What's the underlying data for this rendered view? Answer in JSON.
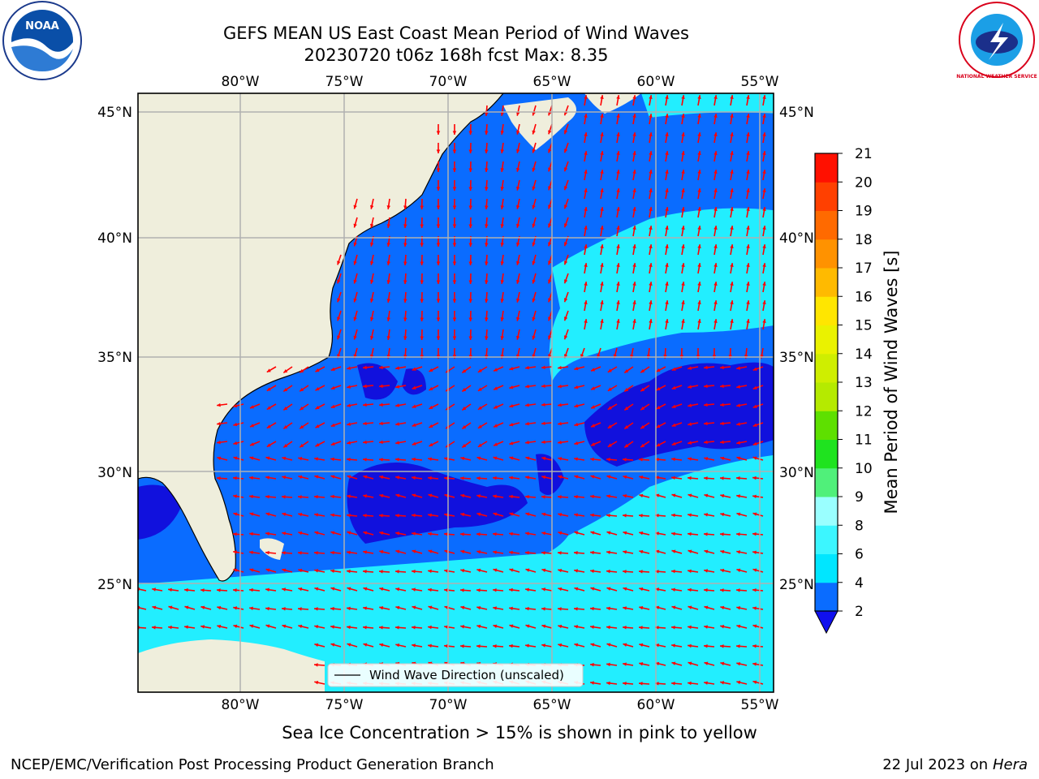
{
  "title_line1": "GEFS MEAN US East Coast Mean Period of Wind Waves",
  "title_line2": "20230720 t06z 168h fcst   Max: 8.35",
  "lon_labels": [
    "80°W",
    "75°W",
    "70°W",
    "65°W",
    "60°W",
    "55°W"
  ],
  "lat_labels": [
    "45°N",
    "40°N",
    "35°N",
    "30°N",
    "25°N"
  ],
  "legend_label": "Wind Wave Direction (unscaled)",
  "colorbar": {
    "label": "Mean Period of Wind Waves [s]",
    "ticks": [
      "2",
      "4",
      "6",
      "8",
      "9",
      "10",
      "11",
      "12",
      "13",
      "14",
      "15",
      "16",
      "17",
      "18",
      "19",
      "20",
      "21"
    ],
    "colors": [
      "#0a6cff",
      "#00e6ff",
      "#3cf6ff",
      "#9affff",
      "#50f07a",
      "#1fe31f",
      "#5ee000",
      "#b5ea00",
      "#cfee00",
      "#eaf200",
      "#ffe600",
      "#ffba00",
      "#ff9200",
      "#ff6a00",
      "#ff4000",
      "#ff1000"
    ],
    "under_color": "#1010ee"
  },
  "map_colors": {
    "land": "#efeedc",
    "ocean_deep": "#1111dd",
    "ocean_mid": "#0a6cff",
    "ocean_light": "#22eeff",
    "arrow": "#ff0000",
    "grid": "#b0b0b0"
  },
  "note": "Sea Ice Concentration > 15% is shown in pink to yellow",
  "footer_left": "NCEP/EMC/Verification Post Processing Product Generation Branch",
  "footer_right_date": "22 Jul 2023 on ",
  "footer_right_host": "Hera",
  "logo_left_text": "NOAA",
  "logo_right_text": "NATIONAL WEATHER SERVICE"
}
